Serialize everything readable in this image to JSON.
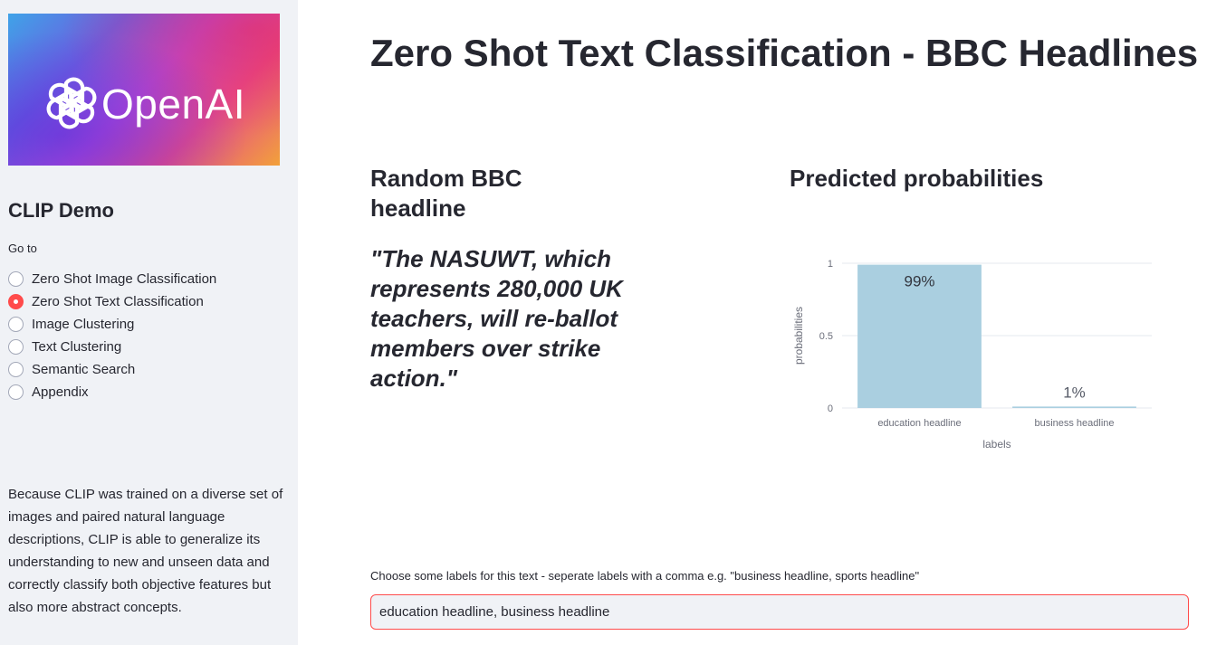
{
  "sidebar": {
    "logo": {
      "text": "OpenAI",
      "icon": "openai-logo-icon"
    },
    "title": "CLIP Demo",
    "nav_label": "Go to",
    "nav_items": [
      {
        "label": "Zero Shot Image Classification",
        "selected": false
      },
      {
        "label": "Zero Shot Text Classification",
        "selected": true
      },
      {
        "label": "Image Clustering",
        "selected": false
      },
      {
        "label": "Text Clustering",
        "selected": false
      },
      {
        "label": "Semantic Search",
        "selected": false
      },
      {
        "label": "Appendix",
        "selected": false
      }
    ],
    "description": "Because CLIP was trained on a diverse set of images and paired natural language descriptions, CLIP is able to generalize its understanding to new and unseen data and correctly classify both objective features but also more abstract concepts."
  },
  "main": {
    "title": "Zero Shot Text Classification - BBC Headlines",
    "left_heading": "Random BBC headline",
    "headline": "\"The NASUWT, which represents 280,000 UK teachers, will re-ballot members over strike action.\"",
    "right_heading": "Predicted probabilities",
    "labels_input": {
      "label": "Choose some labels for this text - seperate labels with a comma e.g. \"business headline, sports headline\"",
      "value": "education headline, business headline"
    }
  },
  "colors": {
    "accent": "#ff4b4b",
    "bar": "#aacfe0",
    "sidebar_bg": "#f0f2f6"
  },
  "chart_data": {
    "type": "bar",
    "categories": [
      "education headline",
      "business headline"
    ],
    "values": [
      0.99,
      0.01
    ],
    "data_labels": [
      "99%",
      "1%"
    ],
    "xlabel": "labels",
    "ylabel": "probabilities",
    "ylim": [
      0,
      1
    ],
    "yticks": [
      0,
      0.5,
      1
    ],
    "ytick_labels": [
      "0",
      "0.5",
      "1"
    ],
    "grid": true,
    "legend": "none"
  }
}
